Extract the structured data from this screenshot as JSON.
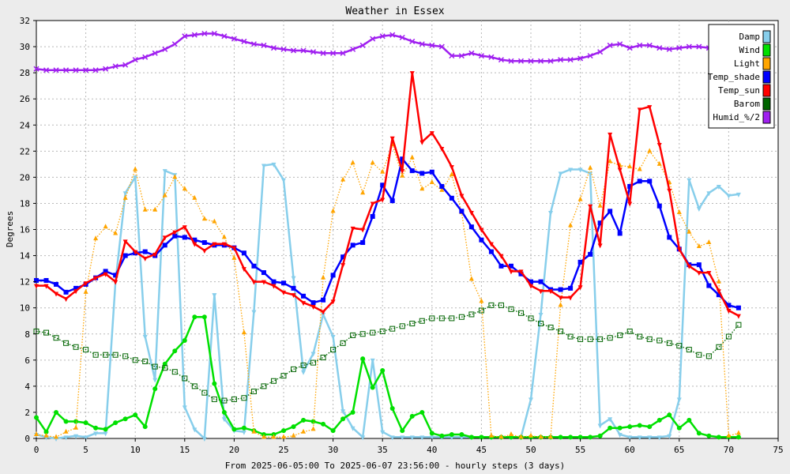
{
  "chart_data": {
    "type": "line",
    "title": "Weather in Essex",
    "xlabel": "From 2025-06-05:00 To 2025-06-07 23:56:00 - hourly steps (3 days)",
    "ylabel": "Degrees",
    "xlim": [
      0,
      75
    ],
    "ylim": [
      0,
      32
    ],
    "xticks": [
      0,
      5,
      10,
      15,
      20,
      25,
      30,
      35,
      40,
      45,
      50,
      55,
      60,
      65,
      70,
      75
    ],
    "yticks": [
      0,
      2,
      4,
      6,
      8,
      10,
      12,
      14,
      16,
      18,
      20,
      22,
      24,
      26,
      28,
      30,
      32
    ],
    "grid": true,
    "legend_position": "top-right",
    "x": [
      0,
      1,
      2,
      3,
      4,
      5,
      6,
      7,
      8,
      9,
      10,
      11,
      12,
      13,
      14,
      15,
      16,
      17,
      18,
      19,
      20,
      21,
      22,
      23,
      24,
      25,
      26,
      27,
      28,
      29,
      30,
      31,
      32,
      33,
      34,
      35,
      36,
      37,
      38,
      39,
      40,
      41,
      42,
      43,
      44,
      45,
      46,
      47,
      48,
      49,
      50,
      51,
      52,
      53,
      54,
      55,
      56,
      57,
      58,
      59,
      60,
      61,
      62,
      63,
      64,
      65,
      66,
      67,
      68,
      69,
      70,
      71
    ],
    "series": [
      {
        "name": "Damp",
        "color": "#87ceeb",
        "marker": "triangle-down",
        "line": "solid",
        "values": [
          0.3,
          0.1,
          0,
          0.1,
          0.2,
          0.1,
          0.4,
          0.4,
          12,
          18.8,
          20,
          7.8,
          4.5,
          20.5,
          20.2,
          2.4,
          0.7,
          0,
          11,
          1.5,
          0.6,
          0.5,
          9.7,
          20.9,
          21,
          19.8,
          12.3,
          5.1,
          6.5,
          9.5,
          7.8,
          2.1,
          0.8,
          0.1,
          6,
          0.5,
          0.1,
          0.1,
          0.1,
          0.1,
          0.1,
          0.1,
          0.1,
          0.1,
          0.1,
          0.1,
          0.1,
          0.1,
          0.1,
          0.1,
          3,
          9.5,
          17.3,
          20.3,
          20.6,
          20.6,
          20.3,
          1,
          1.5,
          0.3,
          0.1,
          0.1,
          0.1,
          0.1,
          0.2,
          3,
          19.8,
          17.6,
          18.8,
          19.3,
          18.6,
          18.7
        ]
      },
      {
        "name": "Wind",
        "color": "#00e000",
        "marker": "circle",
        "line": "solid",
        "values": [
          1.6,
          0.5,
          2,
          1.3,
          1.3,
          1.2,
          0.8,
          0.7,
          1.2,
          1.5,
          1.8,
          0.9,
          3.8,
          5.7,
          6.7,
          7.5,
          9.3,
          9.3,
          4.2,
          2,
          0.7,
          0.8,
          0.6,
          0.3,
          0.3,
          0.6,
          0.9,
          1.4,
          1.3,
          1.1,
          0.6,
          1.5,
          2,
          6.1,
          3.9,
          5.2,
          2.3,
          0.6,
          1.7,
          2,
          0.4,
          0.2,
          0.3,
          0.3,
          0.1,
          0.1,
          0.1,
          0.1,
          0.1,
          0.1,
          0.1,
          0.1,
          0.1,
          0.1,
          0.1,
          0.1,
          0.1,
          0.2,
          0.8,
          0.8,
          0.9,
          1,
          0.9,
          1.4,
          1.8,
          0.8,
          1.4,
          0.4,
          0.2,
          0.1,
          0.1,
          0.1
        ]
      },
      {
        "name": "Light",
        "color": "#ffa500",
        "marker": "triangle-up",
        "line": "dotted",
        "values": [
          0.3,
          0.2,
          0.1,
          0.5,
          0.8,
          11.2,
          15.3,
          16.2,
          15.7,
          18.4,
          20.6,
          17.5,
          17.5,
          18.6,
          20,
          19.1,
          18.4,
          16.8,
          16.6,
          15.4,
          13.8,
          8.1,
          0.5,
          0.1,
          0.1,
          0.1,
          0.2,
          0.5,
          0.7,
          12.3,
          17.4,
          19.8,
          21.1,
          18.8,
          21.1,
          20.4,
          22.5,
          20.1,
          21.5,
          19.1,
          19.6,
          19,
          20.2,
          17.3,
          12.2,
          10.5,
          0.2,
          0.1,
          0.3,
          0.1,
          0.2,
          0.1,
          0.1,
          10.2,
          16.3,
          18.3,
          20.7,
          17.8,
          21.2,
          20.9,
          20.8,
          20.6,
          22,
          21,
          19.6,
          17.3,
          15.8,
          14.7,
          15,
          12,
          0.2,
          0.4
        ]
      },
      {
        "name": "Temp_shade",
        "color": "#0000ff",
        "marker": "square",
        "line": "solid",
        "values": [
          12.1,
          12.1,
          11.8,
          11.2,
          11.5,
          11.8,
          12.3,
          12.8,
          12.5,
          14,
          14.2,
          14.3,
          14,
          14.8,
          15.5,
          15.4,
          15.2,
          15,
          14.8,
          14.8,
          14.6,
          14.2,
          13.2,
          12.7,
          12,
          11.9,
          11.5,
          10.9,
          10.4,
          10.6,
          12.5,
          13.9,
          14.8,
          15,
          17,
          19.4,
          18.2,
          21.4,
          20.5,
          20.3,
          20.4,
          19.3,
          18.4,
          17.4,
          16.2,
          15.2,
          14.3,
          13.2,
          13.2,
          12.6,
          12,
          12,
          11.4,
          11.4,
          11.5,
          13.5,
          14.1,
          16.5,
          17.4,
          15.7,
          19.3,
          19.7,
          19.7,
          17.8,
          15.4,
          14.5,
          13.3,
          13.3,
          11.7,
          11,
          10.2,
          10
        ]
      },
      {
        "name": "Temp_sun",
        "color": "#ff0000",
        "marker": "triangle-down",
        "line": "solid",
        "values": [
          11.7,
          11.7,
          11.1,
          10.7,
          11.3,
          11.9,
          12.3,
          12.6,
          12,
          15.1,
          14.3,
          13.8,
          14.1,
          15.4,
          15.8,
          16.2,
          14.9,
          14.4,
          14.9,
          14.9,
          14.6,
          13,
          12,
          12,
          11.7,
          11.2,
          11,
          10.4,
          10.1,
          9.7,
          10.5,
          13.3,
          16.1,
          16,
          18,
          18.3,
          23,
          20.5,
          28,
          22.7,
          23.4,
          22.2,
          20.8,
          18.6,
          17.3,
          16,
          14.9,
          14,
          12.8,
          12.8,
          11.7,
          11.3,
          11.3,
          10.8,
          10.8,
          11.6,
          17.8,
          14.8,
          23.3,
          20.6,
          18,
          25.2,
          25.4,
          22.5,
          19,
          14.5,
          13.2,
          12.7,
          12.7,
          11.3,
          9.8,
          9.4
        ]
      },
      {
        "name": "Barom",
        "color": "#006400",
        "marker": "square-open",
        "line": "dotted",
        "values": [
          8.2,
          8.1,
          7.7,
          7.3,
          7,
          6.8,
          6.4,
          6.4,
          6.4,
          6.3,
          6,
          5.9,
          5.5,
          5.4,
          5.1,
          4.6,
          4,
          3.5,
          3,
          2.9,
          3,
          3.1,
          3.6,
          4,
          4.4,
          4.8,
          5.3,
          5.6,
          5.8,
          6.2,
          6.8,
          7.3,
          7.9,
          8,
          8.1,
          8.2,
          8.4,
          8.6,
          8.8,
          9,
          9.2,
          9.2,
          9.2,
          9.3,
          9.5,
          9.8,
          10.2,
          10.2,
          9.9,
          9.6,
          9.2,
          8.8,
          8.5,
          8.2,
          7.8,
          7.6,
          7.6,
          7.6,
          7.7,
          7.9,
          8.2,
          7.8,
          7.6,
          7.5,
          7.3,
          7.1,
          6.8,
          6.4,
          6.3,
          7,
          7.8,
          8.7
        ]
      },
      {
        "name": "Humid_%/2",
        "color": "#a020f0",
        "marker": "x",
        "line": "solid",
        "values": [
          28.3,
          28.2,
          28.2,
          28.2,
          28.2,
          28.2,
          28.2,
          28.3,
          28.5,
          28.6,
          29,
          29.2,
          29.5,
          29.8,
          30.2,
          30.8,
          30.9,
          31,
          31,
          30.8,
          30.6,
          30.4,
          30.2,
          30.1,
          29.9,
          29.8,
          29.7,
          29.7,
          29.6,
          29.5,
          29.5,
          29.5,
          29.8,
          30.1,
          30.6,
          30.8,
          30.9,
          30.7,
          30.4,
          30.2,
          30.1,
          30,
          29.3,
          29.3,
          29.5,
          29.3,
          29.2,
          29,
          28.9,
          28.9,
          28.9,
          28.9,
          28.9,
          29,
          29,
          29.1,
          29.3,
          29.6,
          30.1,
          30.2,
          29.9,
          30.1,
          30.1,
          29.9,
          29.8,
          29.9,
          30,
          30,
          29.9,
          null,
          null,
          null
        ]
      }
    ]
  }
}
